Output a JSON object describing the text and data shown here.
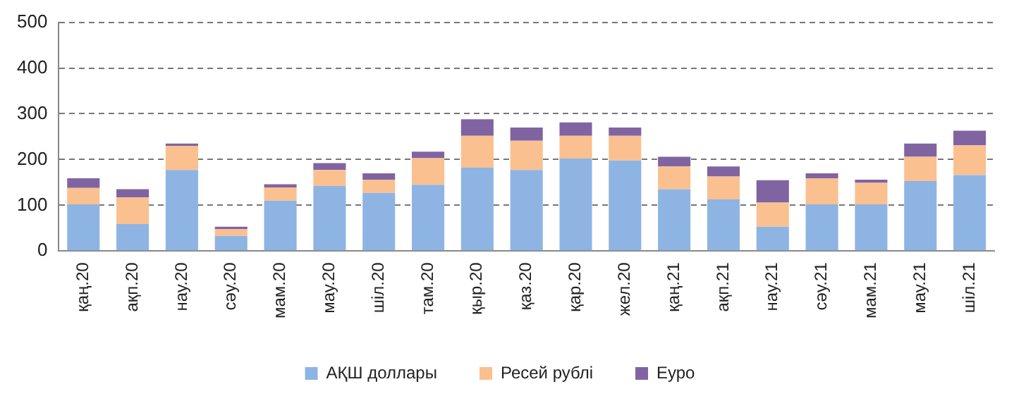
{
  "chart_data": {
    "type": "bar",
    "stacked": true,
    "categories": [
      "қаң.20",
      "ақп.20",
      "нау.20",
      "сәу.20",
      "мам.20",
      "мау.20",
      "шіл.20",
      "там.20",
      "қыр.20",
      "қаз.20",
      "қар.20",
      "жел.20",
      "қаң.21",
      "ақп.21",
      "нау.21",
      "сәу.21",
      "мам.21",
      "мау.21",
      "шіл.21"
    ],
    "series": [
      {
        "name": "АҚШ доллары",
        "color": "#8eb4e3",
        "values": [
          102,
          59,
          177,
          33,
          110,
          142,
          127,
          145,
          182,
          177,
          202,
          198,
          135,
          113,
          53,
          102,
          102,
          153,
          166
        ]
      },
      {
        "name": "Ресей рублі",
        "color": "#fac090",
        "values": [
          36,
          58,
          53,
          15,
          29,
          35,
          29,
          58,
          70,
          64,
          50,
          54,
          50,
          50,
          53,
          57,
          47,
          53,
          65
        ]
      },
      {
        "name": "Еуро",
        "color": "#8064a2",
        "values": [
          21,
          18,
          5,
          5,
          7,
          15,
          14,
          14,
          36,
          29,
          29,
          18,
          21,
          22,
          49,
          11,
          7,
          29,
          32
        ]
      }
    ],
    "ylim": [
      0,
      500
    ],
    "yticks": [
      0,
      100,
      200,
      300,
      400,
      500
    ],
    "grid": "y",
    "legend": "bottom"
  }
}
